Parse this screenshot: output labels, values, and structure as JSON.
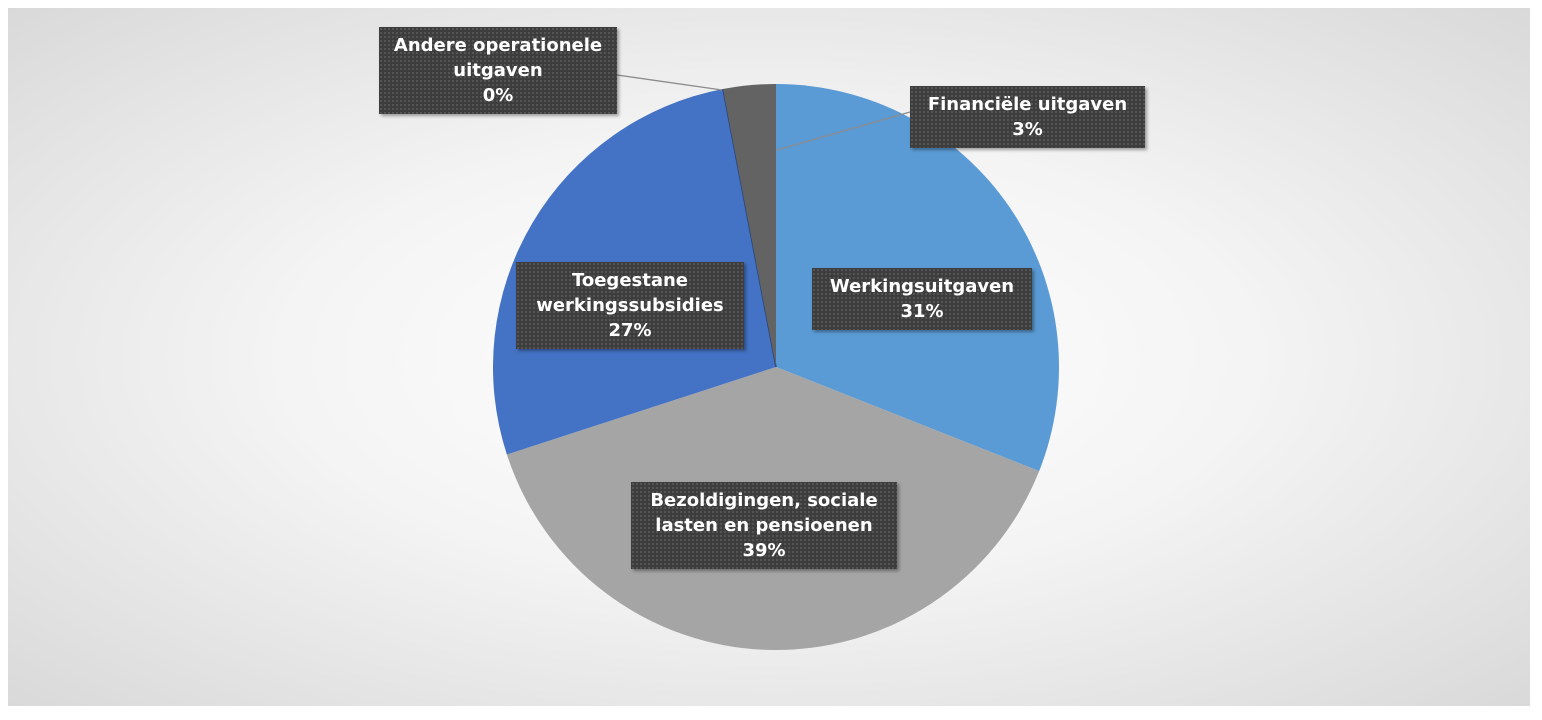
{
  "chart_data": {
    "type": "pie",
    "categories": [
      "Werkingsuitgaven",
      "Bezoldigingen, sociale lasten en pensioenen",
      "Toegestane werkingssubsidies",
      "Andere operationele uitgaven",
      "Financiële uitgaven"
    ],
    "values": [
      31,
      39,
      27,
      0,
      3
    ],
    "value_labels": [
      "31%",
      "39%",
      "27%",
      "0%",
      "3%"
    ],
    "colors": [
      "#5b9bd5",
      "#a5a5a5",
      "#4472c4",
      "#264478",
      "#636363"
    ]
  }
}
